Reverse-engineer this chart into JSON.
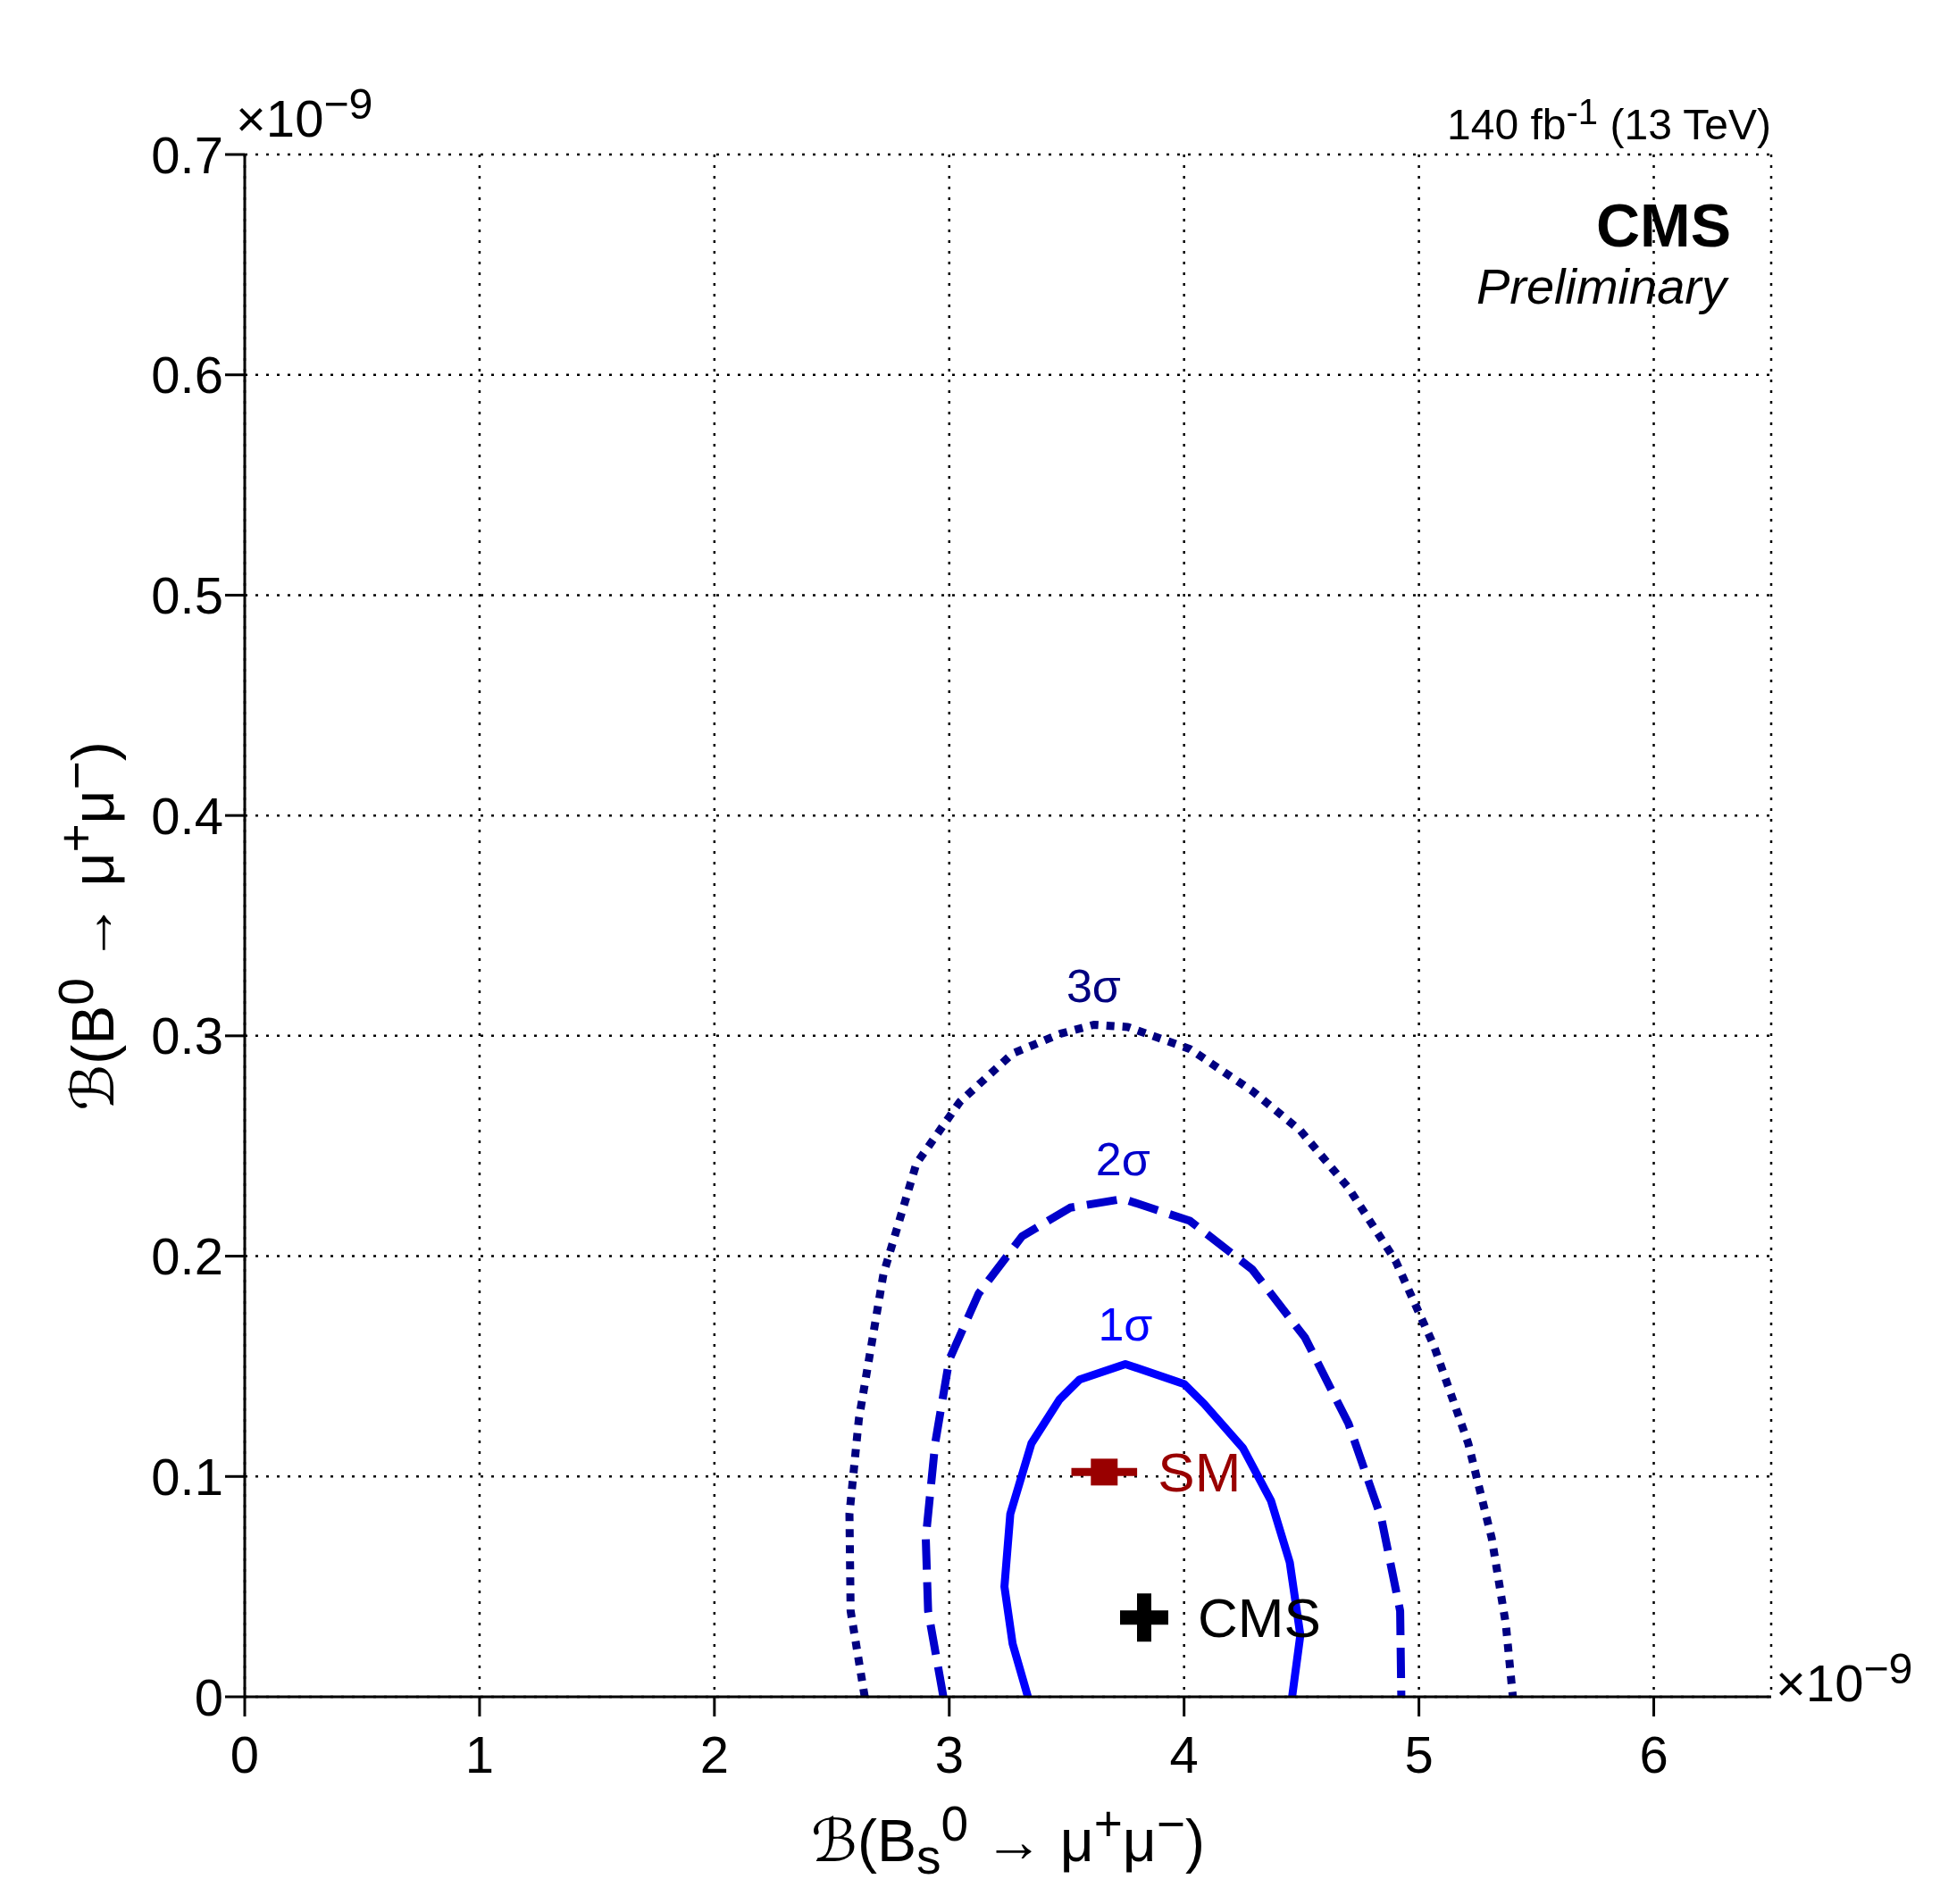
{
  "chart_data": {
    "type": "line",
    "xlabel": "ℬ(B$_{s}$$^{0}$ → μ$^{+}$μ$^{−}$)",
    "ylabel": "ℬ(B$^{0}$ → μ$^{+}$μ$^{−}$)",
    "xlim": [
      0,
      6.5
    ],
    "xticks": [
      0,
      1,
      2,
      3,
      4,
      5,
      6
    ],
    "ylim": [
      0,
      0.7
    ],
    "yticks": [
      0,
      0.1,
      0.2,
      0.3,
      0.4,
      0.5,
      0.6,
      0.7
    ],
    "grid": true,
    "legend": false,
    "annotations": [
      "140 fb$^{-1}$ (13 TeV)",
      "CMS",
      "Preliminary",
      "×10$^{−9}$",
      "×10$^{−9}$"
    ],
    "series": [
      {
        "name": "1σ",
        "line_style": "solid",
        "color": "#0000ff",
        "x": [
          3.335,
          3.27,
          3.235,
          3.26,
          3.35,
          3.47,
          3.555,
          3.75,
          4.0,
          4.085,
          4.25,
          4.37,
          4.45,
          4.495,
          4.46
        ],
        "values": [
          0,
          0.024,
          0.05,
          0.083,
          0.115,
          0.135,
          0.144,
          0.151,
          0.142,
          0.133,
          0.113,
          0.089,
          0.061,
          0.028,
          0
        ]
      },
      {
        "name": "2σ",
        "line_style": "dashed",
        "color": "#0000cc",
        "x": [
          2.975,
          2.91,
          2.9,
          2.94,
          3.0,
          3.125,
          3.31,
          3.515,
          3.74,
          4.025,
          4.29,
          4.515,
          4.7,
          4.84,
          4.92,
          4.925
        ],
        "values": [
          0,
          0.039,
          0.072,
          0.115,
          0.153,
          0.183,
          0.209,
          0.222,
          0.226,
          0.216,
          0.194,
          0.163,
          0.124,
          0.081,
          0.039,
          0
        ]
      },
      {
        "name": "3σ",
        "line_style": "dotted",
        "color": "#000080",
        "x": [
          2.64,
          2.58,
          2.575,
          2.615,
          2.72,
          2.86,
          3.045,
          3.27,
          3.475,
          3.615,
          3.76,
          4.025,
          4.29,
          4.495,
          4.7,
          4.9,
          5.065,
          5.21,
          5.31,
          5.37,
          5.4
        ],
        "values": [
          0,
          0.039,
          0.083,
          0.126,
          0.192,
          0.242,
          0.27,
          0.292,
          0.301,
          0.305,
          0.304,
          0.294,
          0.275,
          0.257,
          0.231,
          0.198,
          0.159,
          0.115,
          0.072,
          0.033,
          0
        ]
      },
      {
        "name": "SM",
        "type": "scatter",
        "marker": "square",
        "color": "#990000",
        "x": [
          3.66
        ],
        "values": [
          0.102
        ],
        "xerrors": [
          0.14
        ]
      },
      {
        "name": "CMS",
        "type": "scatter",
        "marker": "cross",
        "color": "#000000",
        "x": [
          3.83
        ],
        "values": [
          0.036
        ]
      }
    ]
  }
}
